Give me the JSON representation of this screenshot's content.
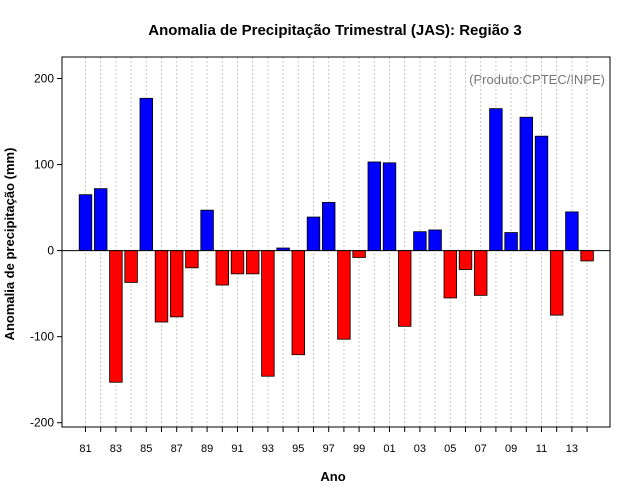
{
  "chart_data": {
    "type": "bar",
    "title": "Anomalia de Precipitação Trimestral (JAS): Região 3",
    "xlabel": "Ano",
    "ylabel": "Anomalia de precipitação (mm)",
    "credit": "(Produto:CPTEC/INPE)",
    "ylim": [
      -205,
      225
    ],
    "yticks": [
      -200,
      -100,
      0,
      100,
      200
    ],
    "categories": [
      "81",
      "82",
      "83",
      "84",
      "85",
      "86",
      "87",
      "88",
      "89",
      "90",
      "91",
      "92",
      "93",
      "94",
      "95",
      "96",
      "97",
      "98",
      "99",
      "00",
      "01",
      "02",
      "03",
      "04",
      "05",
      "06",
      "07",
      "08",
      "09",
      "10",
      "11",
      "12",
      "13",
      "14"
    ],
    "x_tick_labels": [
      "81",
      "83",
      "85",
      "87",
      "89",
      "91",
      "93",
      "95",
      "97",
      "99",
      "01",
      "03",
      "05",
      "07",
      "09",
      "11",
      "13"
    ],
    "values": [
      65,
      72,
      -153,
      -37,
      177,
      -83,
      -77,
      -20,
      47,
      -40,
      -27,
      -27,
      -146,
      3,
      -121,
      39,
      56,
      -103,
      -8,
      103,
      102,
      -88,
      22,
      24,
      -55,
      -22,
      -52,
      165,
      21,
      155,
      133,
      -75,
      45,
      -12
    ],
    "grid": true,
    "colors": {
      "positive": "#0000ff",
      "negative": "#ff0000",
      "grid": "#c8c8c8",
      "zero_line": "#000000"
    }
  }
}
